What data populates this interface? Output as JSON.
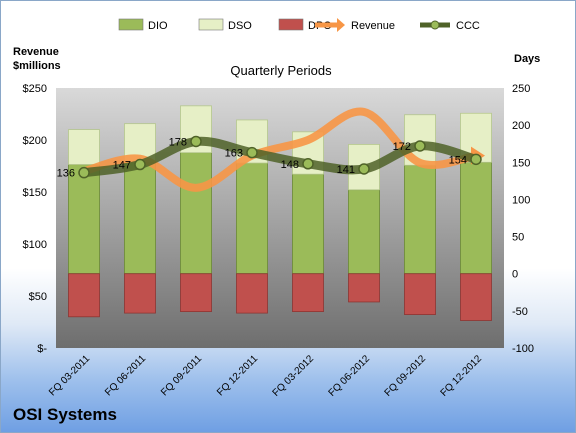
{
  "chart_data": {
    "type": "bar",
    "title": "Quarterly Periods",
    "company": "OSI Systems",
    "left_axis_label": [
      "Revenue",
      "$millions"
    ],
    "right_axis_label": "Days",
    "categories": [
      "FQ 03-2011",
      "FQ 06-2011",
      "FQ 09-2011",
      "FQ 12-2011",
      "FQ 03-2012",
      "FQ 06-2012",
      "FQ 09-2012",
      "FQ 12-2012"
    ],
    "left_ticks": [
      "$-",
      "$50",
      "$100",
      "$150",
      "$200",
      "$250"
    ],
    "left_range": [
      0,
      250
    ],
    "right_ticks": [
      "-100",
      "-50",
      "0",
      "50",
      "100",
      "150",
      "200",
      "250"
    ],
    "right_range": [
      -100,
      250
    ],
    "series": [
      {
        "name": "DIO",
        "type": "stacked-bar",
        "axis": "days",
        "color": "#9bbb59",
        "values": [
          147,
          150,
          163,
          149,
          134,
          113,
          146,
          150
        ]
      },
      {
        "name": "DSO",
        "type": "stacked-bar",
        "axis": "days",
        "color": "#e6efc6",
        "values": [
          47,
          52,
          63,
          58,
          57,
          61,
          68,
          66
        ]
      },
      {
        "name": "DPO",
        "type": "negative-bar",
        "axis": "days",
        "color": "#c0504d",
        "values": [
          -58,
          -53,
          -51,
          -53,
          -51,
          -38,
          -55,
          -63
        ]
      },
      {
        "name": "Revenue",
        "type": "line",
        "axis": "revenue",
        "color": "#f79646",
        "values": [
          170,
          182,
          154,
          185,
          200,
          227,
          178,
          185
        ]
      },
      {
        "name": "CCC",
        "type": "line",
        "axis": "days",
        "color": "#4f6228",
        "values": [
          136,
          147,
          178,
          163,
          148,
          141,
          172,
          154
        ]
      }
    ],
    "ccc_labels": [
      "136",
      "147",
      "178",
      "163",
      "148",
      "141",
      "172",
      "154"
    ],
    "legend_position": "top",
    "grid": false
  }
}
